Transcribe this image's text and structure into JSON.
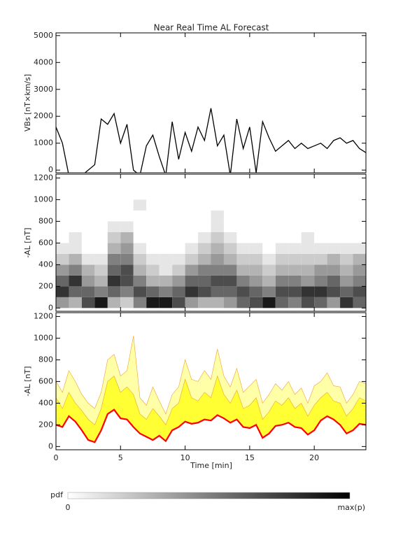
{
  "chart_data": [
    {
      "type": "line",
      "title": "Near Real Time AL Forecast",
      "ylabel": "VBs [nT×km/s]",
      "xlim": [
        0,
        24
      ],
      "ylim": [
        -100,
        5100
      ],
      "yticks": [
        0,
        1000,
        2000,
        3000,
        4000,
        5000
      ],
      "color": "#000000",
      "x": [
        0,
        0.5,
        1,
        1.5,
        2,
        2.5,
        3,
        3.5,
        4,
        4.5,
        5,
        5.5,
        6,
        6.5,
        7,
        7.5,
        8,
        8.5,
        9,
        9.5,
        10,
        10.5,
        11,
        11.5,
        12,
        12.5,
        13,
        13.5,
        14,
        14.5,
        15,
        15.5,
        16,
        16.5,
        17,
        17.5,
        18,
        18.5,
        19,
        19.5,
        20,
        20.5,
        21,
        21.5,
        22,
        22.5,
        23,
        23.5,
        24
      ],
      "values": [
        1600,
        1000,
        -200,
        -200,
        -200,
        0,
        200,
        1900,
        1700,
        2100,
        1000,
        1700,
        0,
        -200,
        900,
        1300,
        500,
        -200,
        1800,
        400,
        1400,
        700,
        1600,
        1100,
        2300,
        900,
        1300,
        -200,
        1900,
        800,
        1600,
        -100,
        1800,
        1200,
        700,
        900,
        1100,
        800,
        1000,
        800,
        900,
        1000,
        800,
        1100,
        1200,
        1000,
        1100,
        800,
        650
      ]
    },
    {
      "type": "heatmap",
      "ylabel": "-AL [nT]",
      "xlim": [
        0,
        24
      ],
      "ylim": [
        -30,
        1235
      ],
      "yticks": [
        0,
        200,
        400,
        600,
        800,
        1000,
        1200
      ],
      "xbins": [
        0,
        1,
        2,
        3,
        4,
        5,
        6,
        7,
        8,
        9,
        10,
        11,
        12,
        13,
        14,
        15,
        16,
        17,
        18,
        19,
        20,
        21,
        22,
        23,
        24
      ],
      "ybins": [
        0,
        100,
        200,
        300,
        400,
        500,
        600,
        700,
        800,
        900,
        1000
      ],
      "z": [
        [
          0.4,
          0.8,
          0.6,
          0.4,
          0.2,
          0.1,
          0,
          0,
          0,
          0
        ],
        [
          0.3,
          0.6,
          0.8,
          0.5,
          0.3,
          0.1,
          0.1,
          0,
          0,
          0
        ],
        [
          0.7,
          0.6,
          0.4,
          0.3,
          0.1,
          0,
          0,
          0,
          0,
          0
        ],
        [
          0.9,
          0.5,
          0.3,
          0.2,
          0.1,
          0,
          0,
          0,
          0,
          0
        ],
        [
          0.3,
          0.6,
          0.8,
          0.6,
          0.5,
          0.3,
          0.2,
          0.1,
          0,
          0
        ],
        [
          0.2,
          0.5,
          0.7,
          0.7,
          0.5,
          0.4,
          0.3,
          0.1,
          0,
          0
        ],
        [
          0.5,
          0.7,
          0.5,
          0.3,
          0.2,
          0.1,
          0,
          0,
          0,
          0.1
        ],
        [
          0.9,
          0.6,
          0.3,
          0.2,
          0.1,
          0,
          0,
          0,
          0,
          0
        ],
        [
          0.9,
          0.5,
          0.3,
          0.1,
          0.1,
          0,
          0,
          0,
          0,
          0
        ],
        [
          0.7,
          0.6,
          0.4,
          0.2,
          0.1,
          0,
          0,
          0,
          0,
          0
        ],
        [
          0.4,
          0.8,
          0.6,
          0.4,
          0.2,
          0.1,
          0,
          0,
          0,
          0
        ],
        [
          0.3,
          0.7,
          0.6,
          0.5,
          0.3,
          0.2,
          0.1,
          0,
          0,
          0
        ],
        [
          0.3,
          0.6,
          0.7,
          0.5,
          0.4,
          0.3,
          0.2,
          0.1,
          0.1,
          0
        ],
        [
          0.4,
          0.6,
          0.7,
          0.5,
          0.3,
          0.2,
          0.1,
          0,
          0,
          0
        ],
        [
          0.6,
          0.7,
          0.5,
          0.3,
          0.2,
          0.1,
          0,
          0,
          0,
          0
        ],
        [
          0.7,
          0.6,
          0.4,
          0.3,
          0.2,
          0.1,
          0,
          0,
          0,
          0
        ],
        [
          0.9,
          0.5,
          0.3,
          0.2,
          0.1,
          0,
          0,
          0,
          0,
          0
        ],
        [
          0.6,
          0.7,
          0.5,
          0.3,
          0.2,
          0.1,
          0,
          0,
          0,
          0
        ],
        [
          0.5,
          0.7,
          0.5,
          0.3,
          0.2,
          0.1,
          0,
          0,
          0,
          0
        ],
        [
          0.7,
          0.8,
          0.4,
          0.3,
          0.2,
          0.1,
          0.1,
          0,
          0,
          0
        ],
        [
          0.6,
          0.8,
          0.5,
          0.4,
          0.2,
          0.1,
          0,
          0,
          0,
          0
        ],
        [
          0.4,
          0.7,
          0.6,
          0.4,
          0.3,
          0.1,
          0,
          0,
          0,
          0
        ],
        [
          0.8,
          0.6,
          0.4,
          0.3,
          0.2,
          0.1,
          0,
          0,
          0,
          0
        ],
        [
          0.6,
          0.7,
          0.5,
          0.4,
          0.3,
          0.1,
          0,
          0,
          0,
          0
        ]
      ]
    },
    {
      "type": "area",
      "ylabel": "-AL [nT]",
      "xlabel": "Time [min]",
      "xlim": [
        0,
        24
      ],
      "xticks": [
        0,
        5,
        10,
        15,
        20
      ],
      "ylim": [
        -30,
        1235
      ],
      "yticks": [
        0,
        200,
        400,
        600,
        800,
        1000,
        1200
      ],
      "x": [
        0,
        0.5,
        1,
        1.5,
        2,
        2.5,
        3,
        3.5,
        4,
        4.5,
        5,
        5.5,
        6,
        6.5,
        7,
        7.5,
        8,
        8.5,
        9,
        9.5,
        10,
        10.5,
        11,
        11.5,
        12,
        12.5,
        13,
        13.5,
        14,
        14.5,
        15,
        15.5,
        16,
        16.5,
        17,
        17.5,
        18,
        18.5,
        19,
        19.5,
        20,
        20.5,
        21,
        21.5,
        22,
        22.5,
        23,
        23.5,
        24
      ],
      "series": [
        {
          "color": "#ff0000",
          "values": [
            200,
            180,
            280,
            230,
            150,
            60,
            40,
            150,
            300,
            340,
            260,
            250,
            180,
            120,
            90,
            60,
            100,
            50,
            150,
            180,
            230,
            210,
            220,
            250,
            240,
            290,
            260,
            220,
            250,
            180,
            170,
            200,
            80,
            120,
            190,
            200,
            220,
            180,
            170,
            110,
            150,
            240,
            280,
            250,
            200,
            120,
            150,
            210,
            200
          ]
        },
        {
          "color": "#ffff33",
          "values": [
            450,
            350,
            500,
            400,
            330,
            250,
            200,
            350,
            600,
            650,
            500,
            550,
            480,
            300,
            250,
            350,
            280,
            200,
            350,
            400,
            620,
            450,
            420,
            500,
            450,
            650,
            480,
            400,
            520,
            350,
            380,
            450,
            250,
            320,
            420,
            380,
            450,
            350,
            400,
            280,
            380,
            450,
            500,
            420,
            400,
            280,
            350,
            450,
            420
          ]
        },
        {
          "color": "#ffffa8",
          "values": [
            600,
            500,
            700,
            600,
            480,
            400,
            350,
            500,
            800,
            850,
            650,
            700,
            1020,
            450,
            380,
            550,
            420,
            300,
            480,
            550,
            800,
            620,
            600,
            700,
            620,
            900,
            650,
            550,
            720,
            500,
            560,
            620,
            400,
            480,
            580,
            520,
            600,
            480,
            540,
            400,
            560,
            600,
            680,
            560,
            550,
            400,
            480,
            600,
            580
          ]
        }
      ]
    }
  ],
  "colorbar": {
    "label": "pdf",
    "min_label": "0",
    "max_label": "max(p)"
  }
}
